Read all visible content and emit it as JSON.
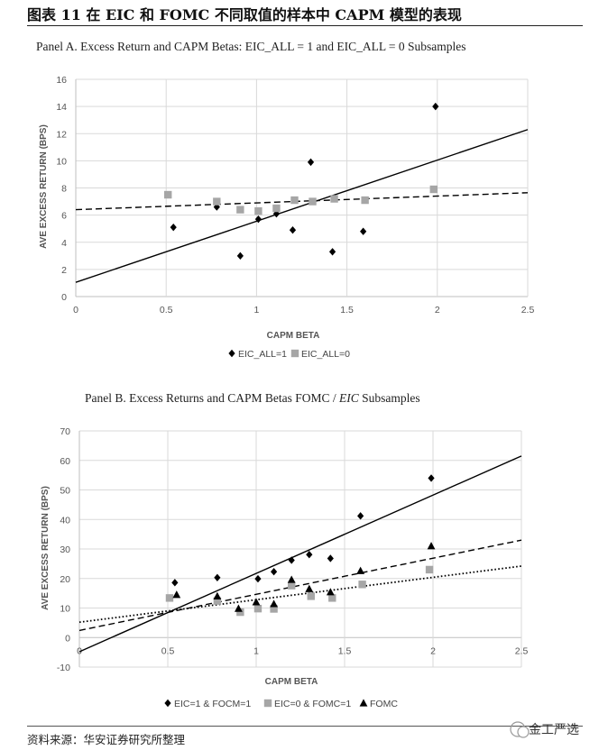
{
  "figure": {
    "title": "图表 11 在 EIC 和 FOMC 不同取值的样本中 CAPM 模型的表现",
    "source": "资料来源：华安证券研究所整理",
    "watermark": "金工严选"
  },
  "colors": {
    "diamond": "#000000",
    "square": "#a6a6a6",
    "triangle": "#000000",
    "grid": "#d9d9d9",
    "axis": "#bfbfbf"
  },
  "chart_data": [
    {
      "type": "scatter",
      "title": "Panel A. Excess Return and CAPM Betas: EIC_ALL = 1 and EIC_ALL = 0 Subsamples",
      "xlabel": "CAPM BETA",
      "ylabel": "AVE EXCESS RETURN (BPS)",
      "xlim": [
        0,
        2.5
      ],
      "ylim": [
        0,
        16
      ],
      "xticks": [
        0,
        0.5,
        1,
        1.5,
        2,
        2.5
      ],
      "xtick_labels": [
        "0",
        "0.5",
        "1",
        "1.5",
        "2",
        "2.5"
      ],
      "yticks": [
        0,
        2,
        4,
        6,
        8,
        10,
        12,
        14,
        16
      ],
      "ytick_labels": [
        "0",
        "2",
        "4",
        "6",
        "8",
        "10",
        "12",
        "14",
        "16"
      ],
      "grid": true,
      "legend": "bottom-center",
      "series": [
        {
          "name": "EIC_ALL=1",
          "marker": "diamond",
          "color": "#000000",
          "points": [
            [
              0.54,
              5.1
            ],
            [
              0.78,
              6.6
            ],
            [
              0.91,
              3.0
            ],
            [
              1.01,
              5.7
            ],
            [
              1.11,
              6.1
            ],
            [
              1.2,
              4.9
            ],
            [
              1.3,
              9.9
            ],
            [
              1.42,
              3.3
            ],
            [
              1.59,
              4.8
            ],
            [
              1.99,
              14.0
            ]
          ],
          "fit": {
            "x": [
              0,
              2.5
            ],
            "y": [
              1.05,
              12.3
            ],
            "style": "solid"
          }
        },
        {
          "name": "EIC_ALL=0",
          "marker": "square",
          "color": "#a6a6a6",
          "points": [
            [
              0.51,
              7.5
            ],
            [
              0.78,
              7.0
            ],
            [
              0.91,
              6.4
            ],
            [
              1.01,
              6.3
            ],
            [
              1.11,
              6.5
            ],
            [
              1.21,
              7.1
            ],
            [
              1.31,
              7.0
            ],
            [
              1.43,
              7.2
            ],
            [
              1.6,
              7.1
            ],
            [
              1.98,
              7.9
            ]
          ],
          "fit": {
            "x": [
              0,
              2.5
            ],
            "y": [
              6.4,
              7.65
            ],
            "style": "dashed"
          }
        }
      ]
    },
    {
      "type": "scatter",
      "title_prefix": "Panel B. Excess Returns and CAPM Betas FOMC / ",
      "title_italic": "EIC",
      "title_suffix": " Subsamples",
      "xlabel": "CAPM BETA",
      "ylabel": "AVE EXCESS RETURN (BPS)",
      "xlim": [
        0,
        2.5
      ],
      "ylim": [
        -10,
        70
      ],
      "xticks": [
        0,
        0.5,
        1,
        1.5,
        2,
        2.5
      ],
      "xtick_labels": [
        "0",
        "0.5",
        "1",
        "1.5",
        "2",
        "2.5"
      ],
      "yticks": [
        -10,
        0,
        10,
        20,
        30,
        40,
        50,
        60,
        70
      ],
      "ytick_labels": [
        "-10",
        "0",
        "10",
        "20",
        "30",
        "40",
        "50",
        "60",
        "70"
      ],
      "grid": true,
      "legend": "bottom-center",
      "series": [
        {
          "name": "EIC=1 & FOCM=1",
          "marker": "diamond",
          "color": "#000000",
          "points": [
            [
              0.54,
              18.6
            ],
            [
              0.78,
              20.3
            ],
            [
              1.01,
              19.9
            ],
            [
              1.1,
              22.3
            ],
            [
              1.2,
              26.2
            ],
            [
              1.3,
              28.1
            ],
            [
              1.42,
              26.8
            ],
            [
              1.59,
              41.2
            ],
            [
              1.99,
              54.0
            ]
          ],
          "fit": {
            "x": [
              0,
              2.5
            ],
            "y": [
              -4.8,
              61.5
            ],
            "style": "solid"
          }
        },
        {
          "name": "EIC=0 & FOMC=1",
          "marker": "square",
          "color": "#a6a6a6",
          "points": [
            [
              0.51,
              13.4
            ],
            [
              0.78,
              12.4
            ],
            [
              0.91,
              8.6
            ],
            [
              1.01,
              9.8
            ],
            [
              1.1,
              9.7
            ],
            [
              1.2,
              17.6
            ],
            [
              1.31,
              14.0
            ],
            [
              1.43,
              13.4
            ],
            [
              1.6,
              18.0
            ],
            [
              1.98,
              23.0
            ]
          ],
          "fit": {
            "x": [
              0,
              2.5
            ],
            "y": [
              2.4,
              33.0
            ],
            "style": "dashed"
          }
        },
        {
          "name": "FOMC",
          "marker": "triangle",
          "color": "#000000",
          "points": [
            [
              0.55,
              14.5
            ],
            [
              0.78,
              14.0
            ],
            [
              0.9,
              9.8
            ],
            [
              1.0,
              12.0
            ],
            [
              1.1,
              11.4
            ],
            [
              1.2,
              19.6
            ],
            [
              1.3,
              16.5
            ],
            [
              1.42,
              15.4
            ],
            [
              1.59,
              22.6
            ],
            [
              1.99,
              31.0
            ]
          ],
          "fit": {
            "x": [
              0,
              2.5
            ],
            "y": [
              5.2,
              24.2
            ],
            "style": "dotted"
          }
        }
      ]
    }
  ]
}
